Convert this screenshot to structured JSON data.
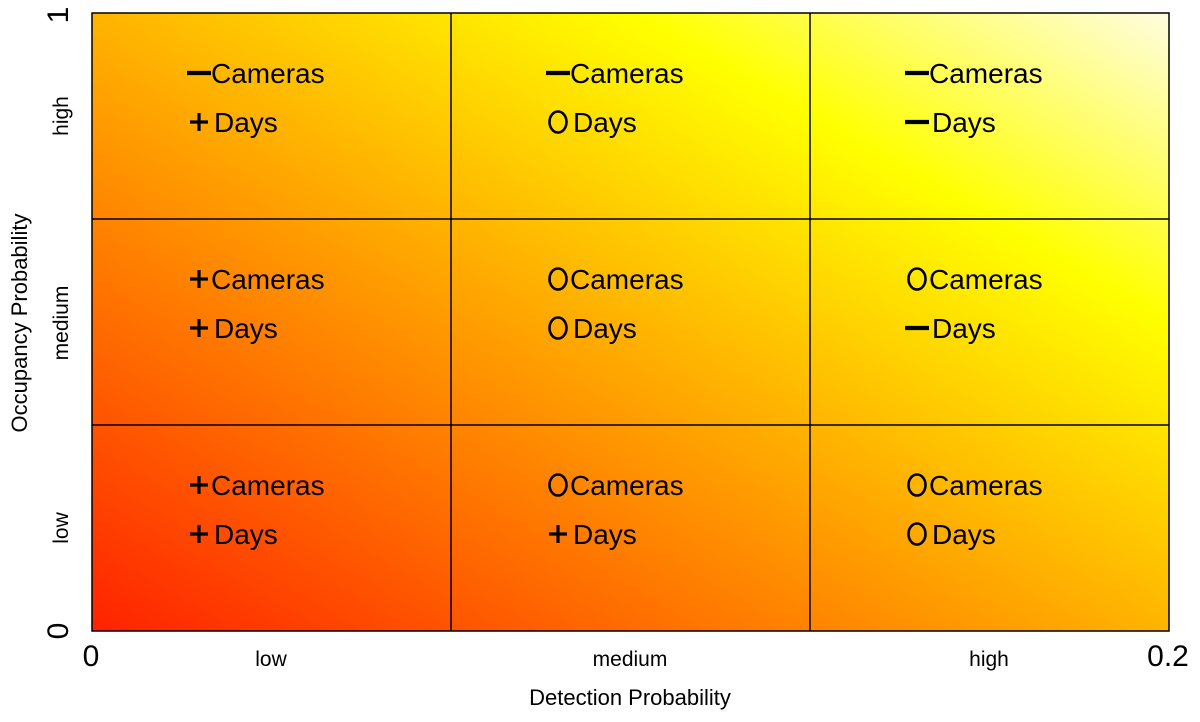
{
  "chart_data": {
    "type": "heatmap",
    "title": "",
    "xlabel": "Detection Probability",
    "ylabel": "Occupancy Probability",
    "x_axis": {
      "min_label": "0",
      "max_label": "0.2",
      "categories": [
        "low",
        "medium",
        "high"
      ]
    },
    "y_axis": {
      "min_label": "0",
      "max_label": "1",
      "categories": [
        "low",
        "medium",
        "high"
      ]
    },
    "gradient": {
      "low_low_color": "#ff2200",
      "mid_color": "#ffa500",
      "high_color": "#ffff00",
      "high_high_color": "#fffde0"
    },
    "grid": true,
    "cells": [
      {
        "occupancy": "high",
        "detection": "low",
        "items": [
          {
            "sign": "-",
            "label": "Cameras"
          },
          {
            "sign": "+",
            "label": "Days"
          }
        ]
      },
      {
        "occupancy": "high",
        "detection": "medium",
        "items": [
          {
            "sign": "-",
            "label": "Cameras"
          },
          {
            "sign": "O",
            "label": "Days"
          }
        ]
      },
      {
        "occupancy": "high",
        "detection": "high",
        "items": [
          {
            "sign": "-",
            "label": "Cameras"
          },
          {
            "sign": "-",
            "label": "Days"
          }
        ]
      },
      {
        "occupancy": "medium",
        "detection": "low",
        "items": [
          {
            "sign": "+",
            "label": "Cameras"
          },
          {
            "sign": "+",
            "label": "Days"
          }
        ]
      },
      {
        "occupancy": "medium",
        "detection": "medium",
        "items": [
          {
            "sign": "O",
            "label": "Cameras"
          },
          {
            "sign": "O",
            "label": "Days"
          }
        ]
      },
      {
        "occupancy": "medium",
        "detection": "high",
        "items": [
          {
            "sign": "O",
            "label": "Cameras"
          },
          {
            "sign": "-",
            "label": "Days"
          }
        ]
      },
      {
        "occupancy": "low",
        "detection": "low",
        "items": [
          {
            "sign": "+",
            "label": "Cameras"
          },
          {
            "sign": "+",
            "label": "Days"
          }
        ]
      },
      {
        "occupancy": "low",
        "detection": "medium",
        "items": [
          {
            "sign": "O",
            "label": "Cameras"
          },
          {
            "sign": "+",
            "label": "Days"
          }
        ]
      },
      {
        "occupancy": "low",
        "detection": "high",
        "items": [
          {
            "sign": "O",
            "label": "Cameras"
          },
          {
            "sign": "O",
            "label": "Days"
          }
        ]
      }
    ]
  }
}
